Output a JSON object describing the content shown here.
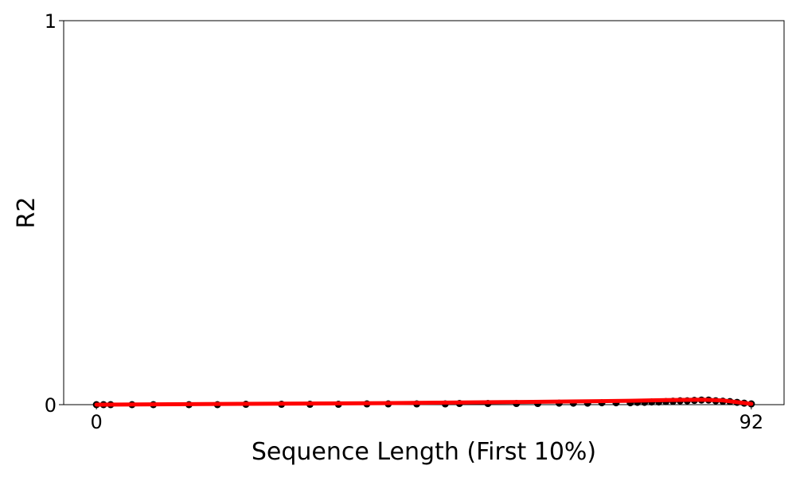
{
  "chart_data": {
    "type": "line",
    "title": "",
    "xlabel": "Sequence Length (First 10%)",
    "ylabel": "R2",
    "xlim": [
      -4.6,
      96.6
    ],
    "ylim": [
      0,
      1
    ],
    "x_ticks": [
      0,
      92
    ],
    "y_ticks": [
      0,
      1
    ],
    "grid": false,
    "legend": "none",
    "colors": {
      "points": "#000000",
      "line": "#ff0000"
    },
    "series": [
      {
        "style": "scatter",
        "x": [
          0,
          1,
          2,
          5,
          8,
          13,
          17,
          21,
          26,
          30,
          34,
          38,
          41,
          45,
          49,
          51,
          55,
          59,
          62,
          65,
          67,
          69,
          71,
          73,
          75,
          76,
          77,
          78,
          79,
          80,
          81,
          82,
          83,
          84,
          85,
          86,
          87,
          88,
          89,
          90,
          91,
          92
        ],
        "y": [
          0.0,
          0.0,
          0.0,
          0.0,
          0.0,
          0.0,
          0.0,
          0.001,
          0.001,
          0.001,
          0.001,
          0.002,
          0.002,
          0.002,
          0.002,
          0.003,
          0.003,
          0.003,
          0.003,
          0.004,
          0.004,
          0.004,
          0.005,
          0.005,
          0.005,
          0.006,
          0.006,
          0.007,
          0.007,
          0.008,
          0.009,
          0.01,
          0.01,
          0.011,
          0.012,
          0.012,
          0.01,
          0.009,
          0.008,
          0.006,
          0.004,
          0.002
        ]
      },
      {
        "style": "line",
        "x": [
          0,
          20,
          40,
          60,
          75,
          80,
          85,
          88,
          92
        ],
        "y": [
          0.0,
          0.002,
          0.004,
          0.007,
          0.01,
          0.012,
          0.013,
          0.011,
          0.002
        ]
      }
    ]
  }
}
